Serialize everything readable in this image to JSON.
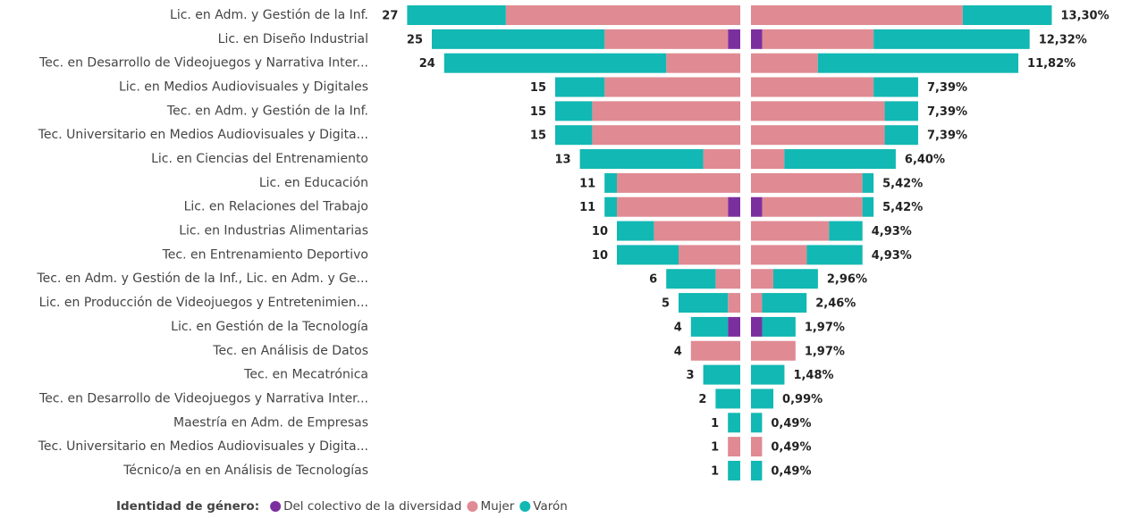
{
  "chart_data": {
    "type": "butterfly-stacked-bar",
    "categories": [
      "Lic. en Adm. y Gestión de la Inf.",
      "Lic. en Diseño Industrial",
      "Tec. en Desarrollo de Videojuegos y Narrativa Inter...",
      "Lic. en Medios Audiovisuales y Digitales",
      "Tec. en Adm. y Gestión de la Inf.",
      "Tec. Universitario en Medios Audiovisuales y Digita...",
      "Lic. en Ciencias del Entrenamiento",
      "Lic. en Educación",
      "Lic. en Relaciones del Trabajo",
      "Lic. en Industrias Alimentarias",
      "Tec. en Entrenamiento Deportivo",
      "Tec. en Adm. y Gestión de la Inf., Lic. en Adm. y Ge...",
      "Lic. en Producción de Videojuegos y Entretenimien...",
      "Lic. en Gestión de la Tecnología",
      "Tec. en Análisis de Datos",
      "Tec. en Mecatrónica",
      "Tec. en Desarrollo de Videojuegos y Narrativa Inter...",
      "Maestría en Adm. de Empresas",
      "Tec. Universitario en Medios Audiovisuales y Digita...",
      "Técnico/a en en Análisis de Tecnologías"
    ],
    "legend_title": "Identidad de género:",
    "series": [
      {
        "name": "Del colectivo de la diversidad",
        "color": "#7b2f9e",
        "values": [
          0,
          1,
          0,
          0,
          0,
          0,
          0,
          0,
          1,
          0,
          0,
          0,
          0,
          1,
          0,
          0,
          0,
          0,
          0,
          0
        ]
      },
      {
        "name": "Mujer",
        "color": "#e08a93",
        "values": [
          19,
          10,
          6,
          11,
          12,
          12,
          3,
          10,
          9,
          7,
          5,
          2,
          1,
          0,
          4,
          0,
          0,
          0,
          1,
          0
        ]
      },
      {
        "name": "Varón",
        "color": "#12b8b3",
        "values": [
          8,
          14,
          18,
          4,
          3,
          3,
          10,
          1,
          1,
          3,
          5,
          4,
          4,
          3,
          0,
          3,
          2,
          1,
          0,
          1
        ]
      }
    ],
    "totals": [
      27,
      25,
      24,
      15,
      15,
      15,
      13,
      11,
      11,
      10,
      10,
      6,
      5,
      4,
      4,
      3,
      2,
      1,
      1,
      1
    ],
    "percentages": [
      13.3,
      12.32,
      11.82,
      7.39,
      7.39,
      7.39,
      6.4,
      5.42,
      5.42,
      4.93,
      4.93,
      2.96,
      2.46,
      1.97,
      1.97,
      1.48,
      0.99,
      0.49,
      0.49,
      0.49
    ],
    "percentage_labels": [
      "13,30%",
      "12,32%",
      "11,82%",
      "7,39%",
      "7,39%",
      "7,39%",
      "6,40%",
      "5,42%",
      "5,42%",
      "4,93%",
      "4,93%",
      "2,96%",
      "2,46%",
      "1,97%",
      "1,97%",
      "1,48%",
      "0,99%",
      "0,49%",
      "0,49%",
      "0,49%"
    ]
  }
}
